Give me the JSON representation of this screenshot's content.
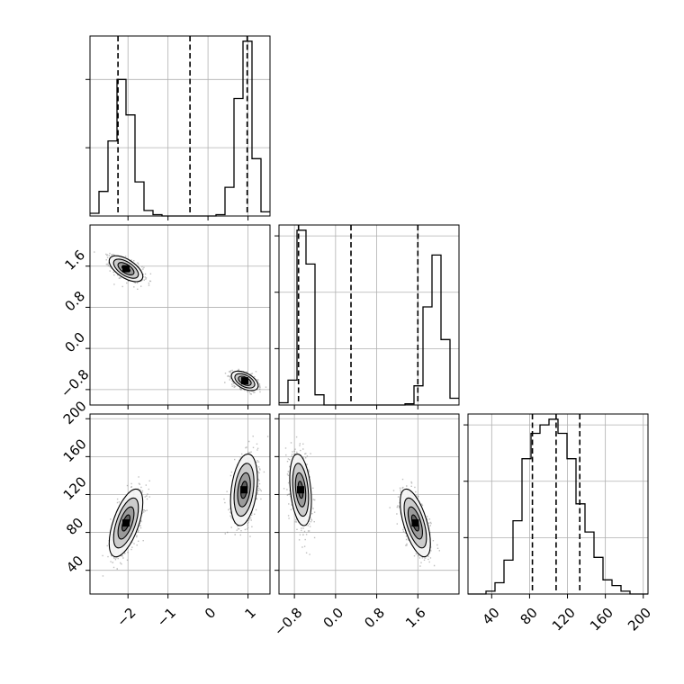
{
  "chart_data": {
    "type": "corner",
    "title": "",
    "parameters": [
      {
        "index": 0,
        "xlim": [
          -2.95,
          1.55
        ],
        "ticks": [
          -2,
          -1,
          0,
          1
        ],
        "tick_labels": [
          "−2",
          "−1",
          "0",
          "1"
        ]
      },
      {
        "index": 1,
        "xlim": [
          -1.1,
          2.4
        ],
        "ticks": [
          -0.8,
          0.0,
          0.8,
          1.6
        ],
        "tick_labels": [
          "−0.8",
          "0.0",
          "0.8",
          "1.6"
        ]
      },
      {
        "index": 2,
        "xlim": [
          15,
          205
        ],
        "ticks": [
          40,
          80,
          120,
          160,
          200
        ],
        "tick_labels": [
          "40",
          "80",
          "120",
          "160",
          "200"
        ]
      }
    ],
    "histograms": [
      {
        "param": 0,
        "bin_edges": [
          -2.95,
          -2.725,
          -2.5,
          -2.275,
          -2.05,
          -1.825,
          -1.6,
          -1.375,
          -1.15,
          -0.925,
          -0.7,
          -0.475,
          -0.25,
          -0.025,
          0.2,
          0.425,
          0.65,
          0.875,
          1.1,
          1.325,
          1.55
        ],
        "counts": [
          2,
          18,
          55,
          100,
          74,
          25,
          4,
          1,
          0,
          0,
          0,
          0,
          0,
          0,
          1,
          21,
          86,
          128,
          42,
          3
        ],
        "quantiles": [
          -2.25,
          -0.45,
          0.98
        ]
      },
      {
        "param": 1,
        "bin_edges": [
          -1.1,
          -0.925,
          -0.75,
          -0.575,
          -0.4,
          -0.225,
          -0.05,
          0.125,
          0.3,
          0.475,
          0.65,
          0.825,
          1.0,
          1.175,
          1.35,
          1.525,
          1.7,
          1.875,
          2.05,
          2.225,
          2.4
        ],
        "counts": [
          2,
          22,
          155,
          125,
          9,
          0,
          0,
          0,
          0,
          0,
          0,
          0,
          0,
          0,
          1,
          17,
          87,
          133,
          58,
          6
        ],
        "quantiles": [
          -0.72,
          0.3,
          1.6
        ]
      },
      {
        "param": 2,
        "bin_edges": [
          15,
          24.5,
          34,
          43.5,
          53,
          62.5,
          72,
          81.5,
          91,
          100.5,
          110,
          119.5,
          129,
          138.5,
          148,
          157.5,
          167,
          176.5,
          186,
          195.5,
          205
        ],
        "counts": [
          0,
          0,
          1,
          4,
          12,
          26,
          48,
          57,
          60,
          62,
          57,
          48,
          32,
          22,
          13,
          5,
          3,
          1,
          0,
          0
        ],
        "quantiles": [
          83,
          108,
          133
        ]
      }
    ],
    "scatter_panels": [
      {
        "x_param": 0,
        "y_param": 1,
        "clusters": [
          {
            "mean": [
              -2.05,
              1.55
            ],
            "sd": [
              0.2,
              0.12
            ],
            "corr": -0.6,
            "n": 700
          },
          {
            "mean": [
              0.92,
              -0.63
            ],
            "sd": [
              0.16,
              0.09
            ],
            "corr": -0.5,
            "n": 700
          }
        ]
      },
      {
        "x_param": 0,
        "y_param": 2,
        "clusters": [
          {
            "mean": [
              -2.05,
              90
            ],
            "sd": [
              0.2,
              17
            ],
            "corr": 0.6,
            "n": 700
          },
          {
            "mean": [
              0.9,
              125
            ],
            "sd": [
              0.16,
              18
            ],
            "corr": 0.3,
            "n": 700
          }
        ]
      },
      {
        "x_param": 1,
        "y_param": 2,
        "clusters": [
          {
            "mean": [
              -0.68,
              125
            ],
            "sd": [
              0.1,
              18
            ],
            "corr": -0.3,
            "n": 700
          },
          {
            "mean": [
              1.55,
              90
            ],
            "sd": [
              0.14,
              17
            ],
            "corr": -0.6,
            "n": 700
          }
        ]
      }
    ],
    "grid": true,
    "xlabel": "",
    "ylabel": ""
  }
}
